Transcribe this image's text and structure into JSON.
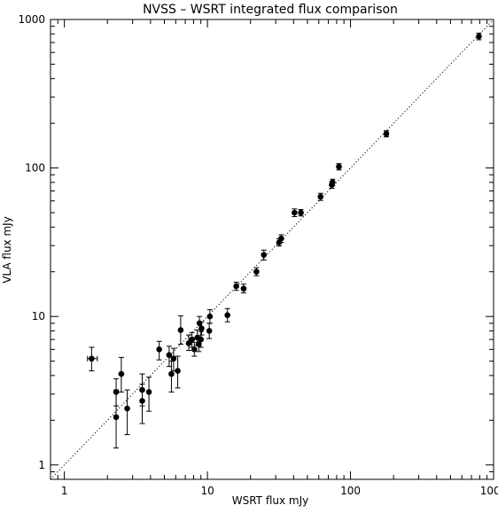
{
  "chart_data": {
    "type": "scatter",
    "title": "NVSS – WSRT integrated flux comparison",
    "xlabel": "WSRT flux mJy",
    "ylabel": "VLA flux mJy",
    "x_scale": "log",
    "y_scale": "log",
    "xlim": [
      0.8,
      1000
    ],
    "ylim": [
      0.8,
      1000
    ],
    "x_ticks": [
      1,
      10,
      100,
      1000
    ],
    "y_ticks": [
      1,
      10,
      100,
      1000
    ],
    "x_tick_labels": [
      "1",
      "10",
      "100",
      "1000"
    ],
    "y_tick_labels": [
      "1",
      "10",
      "100",
      "1000"
    ],
    "grid": false,
    "reference_line": {
      "style": "dotted",
      "relation": "y = x"
    },
    "points": [
      {
        "x": 1.55,
        "y": 5.2,
        "err_lo": 4.3,
        "err_hi": 6.2,
        "xerr_lo": 1.45,
        "xerr_hi": 1.7
      },
      {
        "x": 2.3,
        "y": 3.1,
        "err_lo": 2.5,
        "err_hi": 3.8
      },
      {
        "x": 2.3,
        "y": 2.1,
        "err_lo": 1.3,
        "err_hi": 3.2
      },
      {
        "x": 2.5,
        "y": 4.1,
        "err_lo": 3.1,
        "err_hi": 5.3
      },
      {
        "x": 2.75,
        "y": 2.4,
        "err_lo": 1.6,
        "err_hi": 3.2
      },
      {
        "x": 3.5,
        "y": 3.2,
        "err_lo": 2.5,
        "err_hi": 4.1
      },
      {
        "x": 3.5,
        "y": 2.7,
        "err_lo": 1.9,
        "err_hi": 3.5
      },
      {
        "x": 3.9,
        "y": 3.1,
        "err_lo": 2.3,
        "err_hi": 3.9
      },
      {
        "x": 4.6,
        "y": 6.0,
        "err_lo": 5.1,
        "err_hi": 6.8
      },
      {
        "x": 5.4,
        "y": 5.5,
        "err_lo": 4.6,
        "err_hi": 6.3
      },
      {
        "x": 5.6,
        "y": 4.1,
        "err_lo": 3.1,
        "err_hi": 5.0
      },
      {
        "x": 5.8,
        "y": 5.2,
        "err_lo": 4.3,
        "err_hi": 6.1
      },
      {
        "x": 6.2,
        "y": 4.3,
        "err_lo": 3.3,
        "err_hi": 5.4
      },
      {
        "x": 6.5,
        "y": 8.1,
        "err_lo": 6.5,
        "err_hi": 10.1
      },
      {
        "x": 7.4,
        "y": 6.6,
        "err_lo": 5.9,
        "err_hi": 7.5
      },
      {
        "x": 7.8,
        "y": 7.0,
        "err_lo": 6.2,
        "err_hi": 7.8
      },
      {
        "x": 8.1,
        "y": 6.0,
        "err_lo": 5.4,
        "err_hi": 6.7
      },
      {
        "x": 8.5,
        "y": 7.2,
        "err_lo": 6.4,
        "err_hi": 8.1
      },
      {
        "x": 8.7,
        "y": 6.5,
        "err_lo": 5.8,
        "err_hi": 7.3
      },
      {
        "x": 8.8,
        "y": 9.0,
        "err_lo": 8.1,
        "err_hi": 10.0
      },
      {
        "x": 9.1,
        "y": 8.3,
        "err_lo": 7.5,
        "err_hi": 9.2
      },
      {
        "x": 9.0,
        "y": 7.0,
        "err_lo": 6.2,
        "err_hi": 7.9
      },
      {
        "x": 10.3,
        "y": 8.0,
        "err_lo": 7.1,
        "err_hi": 9.0
      },
      {
        "x": 10.4,
        "y": 10.0,
        "err_lo": 9.0,
        "err_hi": 11.1
      },
      {
        "x": 13.8,
        "y": 10.2,
        "err_lo": 9.2,
        "err_hi": 11.3
      },
      {
        "x": 15.9,
        "y": 16.0,
        "err_lo": 15.0,
        "err_hi": 17.0
      },
      {
        "x": 17.9,
        "y": 15.4,
        "err_lo": 14.4,
        "err_hi": 16.5
      },
      {
        "x": 22.0,
        "y": 20.0,
        "err_lo": 18.8,
        "err_hi": 21.3
      },
      {
        "x": 24.8,
        "y": 26.0,
        "err_lo": 24.0,
        "err_hi": 28.0
      },
      {
        "x": 31.7,
        "y": 31.5,
        "err_lo": 29.8,
        "err_hi": 33.3
      },
      {
        "x": 32.8,
        "y": 33.5,
        "err_lo": 31.5,
        "err_hi": 35.5
      },
      {
        "x": 40.6,
        "y": 50.0,
        "err_lo": 47.0,
        "err_hi": 53.0
      },
      {
        "x": 45.0,
        "y": 50.0,
        "err_lo": 47.5,
        "err_hi": 52.5
      },
      {
        "x": 61.8,
        "y": 64.0,
        "err_lo": 60.5,
        "err_hi": 67.5
      },
      {
        "x": 74.0,
        "y": 77.0,
        "err_lo": 73.0,
        "err_hi": 81.0
      },
      {
        "x": 75.0,
        "y": 80.0,
        "err_lo": 76.0,
        "err_hi": 84.0
      },
      {
        "x": 83.0,
        "y": 102.0,
        "err_lo": 97.0,
        "err_hi": 107.0
      },
      {
        "x": 178.0,
        "y": 170.0,
        "err_lo": 162.0,
        "err_hi": 178.0
      },
      {
        "x": 790.0,
        "y": 770.0,
        "err_lo": 730.0,
        "err_hi": 810.0
      }
    ]
  }
}
